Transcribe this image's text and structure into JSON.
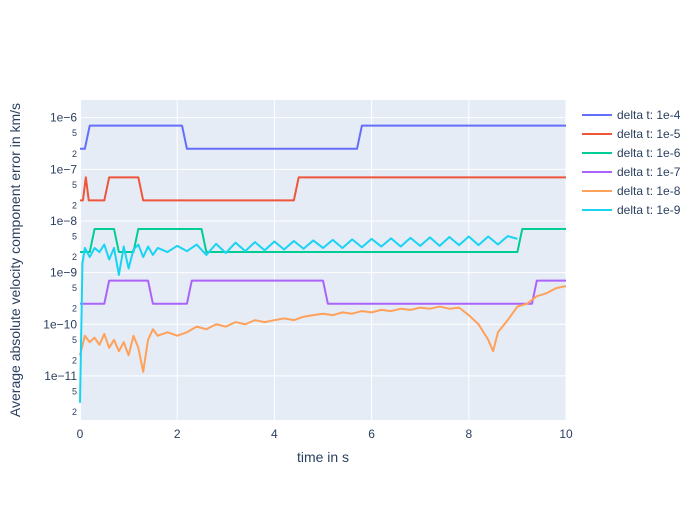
{
  "chart_data": {
    "type": "line",
    "xlabel": "time in s",
    "ylabel": "Average absolute velocity component error in km/s",
    "xlim": [
      0,
      10
    ],
    "ylim": [
      1.4e-12,
      2.2e-06
    ],
    "yscale": "log",
    "grid": true,
    "legend_placement": "top-right outside",
    "x_ticks": [
      {
        "v": 0,
        "label": "0"
      },
      {
        "v": 2,
        "label": "2"
      },
      {
        "v": 4,
        "label": "4"
      },
      {
        "v": 6,
        "label": "6"
      },
      {
        "v": 8,
        "label": "8"
      },
      {
        "v": 10,
        "label": "10"
      }
    ],
    "y_major_ticks": [
      {
        "v": 1e-06,
        "label": "1e−6"
      },
      {
        "v": 1e-07,
        "label": "1e−7"
      },
      {
        "v": 1e-08,
        "label": "1e−8"
      },
      {
        "v": 1e-09,
        "label": "1e−9"
      },
      {
        "v": 1e-10,
        "label": "1e−10"
      },
      {
        "v": 1e-11,
        "label": "1e−11"
      }
    ],
    "y_minor_ticks": [
      {
        "v": 5e-07,
        "label": "5"
      },
      {
        "v": 2e-07,
        "label": "2"
      },
      {
        "v": 5e-08,
        "label": "5"
      },
      {
        "v": 2e-08,
        "label": "2"
      },
      {
        "v": 5e-09,
        "label": "5"
      },
      {
        "v": 2e-09,
        "label": "2"
      },
      {
        "v": 5e-10,
        "label": "5"
      },
      {
        "v": 2e-10,
        "label": "2"
      },
      {
        "v": 5e-11,
        "label": "5"
      },
      {
        "v": 2e-11,
        "label": "2"
      },
      {
        "v": 5e-12,
        "label": "5"
      },
      {
        "v": 2e-12,
        "label": "2"
      }
    ],
    "series": [
      {
        "name": "delta t: 1e-4",
        "color": "#636efa",
        "x": [
          0,
          0.1,
          0.2,
          0.3,
          2,
          2.1,
          2.2,
          5.6,
          5.7,
          5.8,
          10
        ],
        "y": [
          2.5e-07,
          2.5e-07,
          7e-07,
          7e-07,
          7e-07,
          7e-07,
          2.5e-07,
          2.5e-07,
          2.5e-07,
          7e-07,
          7e-07
        ]
      },
      {
        "name": "delta t: 1e-5",
        "color": "#ef553b",
        "x": [
          0,
          0.06,
          0.12,
          0.18,
          0.5,
          0.6,
          1.2,
          1.3,
          4.4,
          4.5,
          10
        ],
        "y": [
          2.5e-08,
          2.5e-08,
          7e-08,
          2.5e-08,
          2.5e-08,
          7e-08,
          7e-08,
          2.5e-08,
          2.5e-08,
          7e-08,
          7e-08
        ]
      },
      {
        "name": "delta t: 1e-6",
        "color": "#00cc96",
        "x": [
          0,
          0.2,
          0.3,
          0.7,
          0.8,
          1.1,
          1.2,
          2.5,
          2.6,
          9.0,
          9.1,
          10
        ],
        "y": [
          2.5e-09,
          2.5e-09,
          7e-09,
          7e-09,
          2.5e-09,
          2.5e-09,
          7e-09,
          7e-09,
          2.5e-09,
          2.5e-09,
          7e-09,
          7e-09
        ]
      },
      {
        "name": "delta t: 1e-7",
        "color": "#ab63fa",
        "x": [
          0,
          0.5,
          0.6,
          1.4,
          1.5,
          2.2,
          2.3,
          5.0,
          5.1,
          9.3,
          9.4,
          10
        ],
        "y": [
          2.5e-10,
          2.5e-10,
          7e-10,
          7e-10,
          2.5e-10,
          2.5e-10,
          7e-10,
          7e-10,
          2.5e-10,
          2.5e-10,
          7e-10,
          7e-10
        ]
      },
      {
        "name": "delta t: 1e-8",
        "color": "#ffa15a",
        "x": [
          0,
          0.1,
          0.2,
          0.3,
          0.4,
          0.5,
          0.6,
          0.7,
          0.8,
          0.9,
          1.0,
          1.1,
          1.2,
          1.3,
          1.4,
          1.5,
          1.6,
          1.8,
          2.0,
          2.2,
          2.4,
          2.6,
          2.8,
          3.0,
          3.2,
          3.4,
          3.6,
          3.8,
          4.0,
          4.2,
          4.4,
          4.6,
          4.8,
          5.0,
          5.2,
          5.4,
          5.6,
          5.8,
          6.0,
          6.2,
          6.4,
          6.6,
          6.8,
          7.0,
          7.2,
          7.4,
          7.6,
          7.8,
          8.0,
          8.2,
          8.4,
          8.5,
          8.6,
          8.8,
          9.0,
          9.2,
          9.4,
          9.6,
          9.8,
          10
        ],
        "y": [
          2.5e-11,
          6e-11,
          4.5e-11,
          5.5e-11,
          4e-11,
          6.5e-11,
          3.5e-11,
          5e-11,
          3e-11,
          4.5e-11,
          2.5e-11,
          6e-11,
          3.5e-11,
          1.2e-11,
          5e-11,
          8e-11,
          6e-11,
          7e-11,
          6e-11,
          7e-11,
          9e-11,
          8e-11,
          1e-10,
          9e-11,
          1.1e-10,
          1e-10,
          1.2e-10,
          1.1e-10,
          1.2e-10,
          1.3e-10,
          1.2e-10,
          1.4e-10,
          1.5e-10,
          1.6e-10,
          1.5e-10,
          1.7e-10,
          1.6e-10,
          1.8e-10,
          1.7e-10,
          1.9e-10,
          1.8e-10,
          2e-10,
          1.9e-10,
          2.1e-10,
          2e-10,
          2.2e-10,
          2e-10,
          2.1e-10,
          1.5e-10,
          1e-10,
          5e-11,
          3e-11,
          7e-11,
          1.2e-10,
          2.2e-10,
          2.5e-10,
          3.5e-10,
          4e-10,
          5e-10,
          5.5e-10
        ]
      },
      {
        "name": "delta t: 1e-9",
        "color": "#19d3f3",
        "x": [
          0,
          0.05,
          0.1,
          0.2,
          0.3,
          0.4,
          0.5,
          0.6,
          0.7,
          0.8,
          0.9,
          1.0,
          1.1,
          1.2,
          1.3,
          1.4,
          1.5,
          1.6,
          1.8,
          2.0,
          2.2,
          2.4,
          2.6,
          2.8,
          3.0,
          3.2,
          3.4,
          3.6,
          3.8,
          4.0,
          4.2,
          4.4,
          4.6,
          4.8,
          5.0,
          5.2,
          5.4,
          5.6,
          5.8,
          6.0,
          6.2,
          6.4,
          6.6,
          6.8,
          7.0,
          7.2,
          7.4,
          7.6,
          7.8,
          8.0,
          8.2,
          8.4,
          8.6,
          8.8,
          9.0
        ],
        "y": [
          3e-12,
          1.5e-09,
          3e-09,
          2e-09,
          3e-09,
          2.5e-09,
          3.5e-09,
          1.8e-09,
          3e-09,
          9e-10,
          3.2e-09,
          1.2e-09,
          2.8e-09,
          3.5e-09,
          2e-09,
          3.2e-09,
          2.2e-09,
          3e-09,
          2.5e-09,
          3.3e-09,
          2.6e-09,
          3.5e-09,
          2.2e-09,
          3.6e-09,
          2.4e-09,
          3.8e-09,
          2.6e-09,
          3.9e-09,
          2.7e-09,
          4e-09,
          2.8e-09,
          4.1e-09,
          2.9e-09,
          4.2e-09,
          3e-09,
          4.3e-09,
          3e-09,
          4.4e-09,
          3.1e-09,
          4.5e-09,
          3.2e-09,
          4.6e-09,
          3.2e-09,
          4.7e-09,
          3.3e-09,
          4.8e-09,
          3.3e-09,
          4.9e-09,
          3.4e-09,
          5e-09,
          3.4e-09,
          5e-09,
          3.5e-09,
          5.1e-09,
          4.5e-09
        ]
      }
    ]
  }
}
